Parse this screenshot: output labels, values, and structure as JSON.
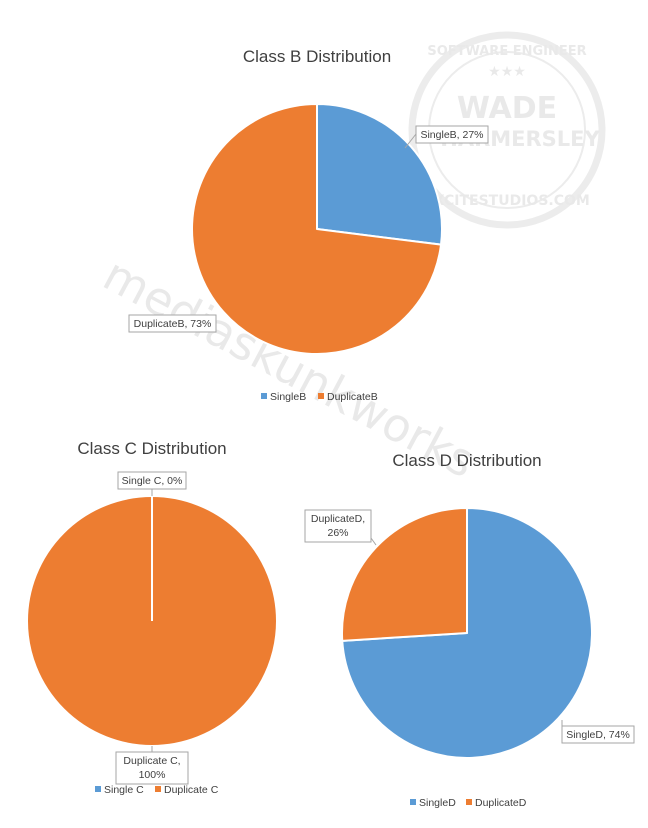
{
  "colors": {
    "single": "#5b9bd5",
    "duplicate": "#ed7d31",
    "label_border": "#a6a6a6",
    "text": "#404040"
  },
  "watermark": {
    "seal_top": "SOFTWARE ENGINEER",
    "seal_name_line1": "WADE",
    "seal_name_line2": "HARMERSLEY",
    "seal_bottom": "EXCITESTUDIOS.COM",
    "diagonal": "mediaskunkworks"
  },
  "chart_data": [
    {
      "type": "pie",
      "title": "Class B Distribution",
      "categories": [
        "SingleB",
        "DuplicateB"
      ],
      "values": [
        27,
        73
      ],
      "data_labels": [
        [
          "SingleB, 27%"
        ],
        [
          "DuplicateB, 73%"
        ]
      ],
      "legend": [
        "SingleB",
        "DuplicateB"
      ],
      "legend_position": "bottom"
    },
    {
      "type": "pie",
      "title": "Class C Distribution",
      "categories": [
        "Single C",
        "Duplicate C"
      ],
      "values": [
        0,
        100
      ],
      "data_labels": [
        [
          "Single C, 0%"
        ],
        [
          "Duplicate C,",
          "100%"
        ]
      ],
      "legend": [
        "Single C",
        "Duplicate C"
      ],
      "legend_position": "bottom"
    },
    {
      "type": "pie",
      "title": "Class D Distribution",
      "categories": [
        "SingleD",
        "DuplicateD"
      ],
      "values": [
        74,
        26
      ],
      "data_labels": [
        [
          "SingleD, 74%"
        ],
        [
          "DuplicateD,",
          "26%"
        ]
      ],
      "legend": [
        "SingleD",
        "DuplicateD"
      ],
      "legend_position": "bottom"
    }
  ]
}
